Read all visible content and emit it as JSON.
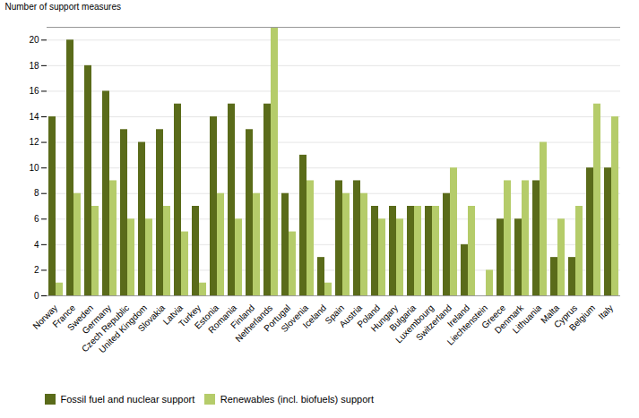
{
  "chart_data": {
    "type": "bar",
    "ylabel": "Number of support measures",
    "categories": [
      "Norway",
      "France",
      "Sweden",
      "Germany",
      "Czech Republic",
      "United Kingdom",
      "Slovakia",
      "Latvia",
      "Turkey",
      "Estonia",
      "Romania",
      "Finland",
      "Netherlands",
      "Portugal",
      "Slovenia",
      "Iceland",
      "Spain",
      "Austria",
      "Poland",
      "Hungary",
      "Bulgaria",
      "Luxembourg",
      "Switzerland",
      "Ireland",
      "Liechtenstein",
      "Greece",
      "Denmark",
      "Lithuania",
      "Malta",
      "Cyprus",
      "Belgium",
      "Italy"
    ],
    "series": [
      {
        "name": "Fossil fuel and nuclear support",
        "color": "#5a6b1a",
        "values": [
          14,
          20,
          18,
          16,
          13,
          12,
          13,
          15,
          7,
          14,
          15,
          13,
          15,
          8,
          11,
          3,
          9,
          9,
          7,
          7,
          7,
          7,
          8,
          4,
          0,
          6,
          6,
          9,
          3,
          3,
          10,
          10
        ]
      },
      {
        "name": "Renewables (incl. biofuels) support",
        "color": "#b5cc6a",
        "values": [
          1,
          8,
          7,
          9,
          6,
          6,
          7,
          5,
          1,
          8,
          6,
          8,
          21,
          5,
          9,
          1,
          8,
          8,
          6,
          6,
          7,
          7,
          10,
          7,
          2,
          9,
          9,
          12,
          6,
          7,
          15,
          14
        ]
      }
    ],
    "ylim": [
      0,
      21
    ],
    "yticks": [
      0,
      2,
      4,
      6,
      8,
      10,
      12,
      14,
      16,
      18,
      20
    ],
    "grid": true,
    "legend": "lower left"
  }
}
